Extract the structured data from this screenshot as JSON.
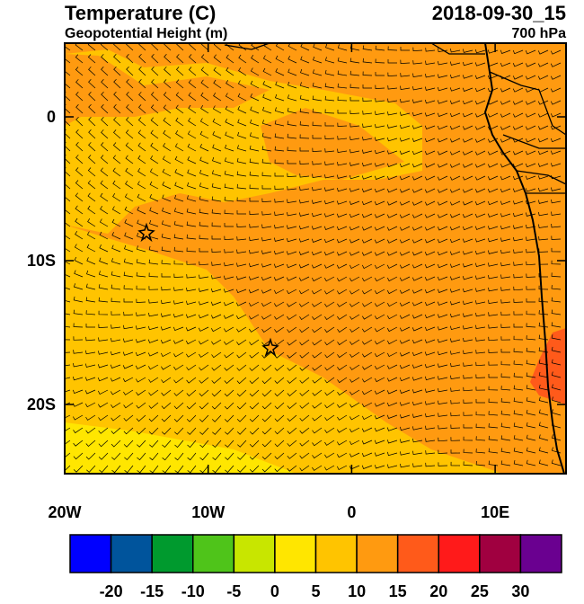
{
  "header": {
    "title": "Temperature (C)",
    "subtitle": "Geopotential Height (m)",
    "time": "2018-09-30_15",
    "level": "700 hPa"
  },
  "map": {
    "x_ticks": [
      {
        "value": -20,
        "label": "20W"
      },
      {
        "value": -10,
        "label": "10W"
      },
      {
        "value": 0,
        "label": "0"
      },
      {
        "value": 10,
        "label": "10E"
      }
    ],
    "y_ticks": [
      {
        "value": 0,
        "label": "0"
      },
      {
        "value": -10,
        "label": "10S"
      },
      {
        "value": -20,
        "label": "20S"
      }
    ]
  },
  "colorbar": {
    "colors": [
      "#0000ff",
      "#00549c",
      "#009a2e",
      "#4fc41a",
      "#c8e600",
      "#ffe600",
      "#ffc400",
      "#ff9a10",
      "#ff5a1a",
      "#ff1a1a",
      "#a00040",
      "#6a0090"
    ],
    "labels": [
      "-20",
      "-15",
      "-10",
      "-5",
      "0",
      "5",
      "10",
      "15",
      "20",
      "25",
      "30"
    ]
  }
}
